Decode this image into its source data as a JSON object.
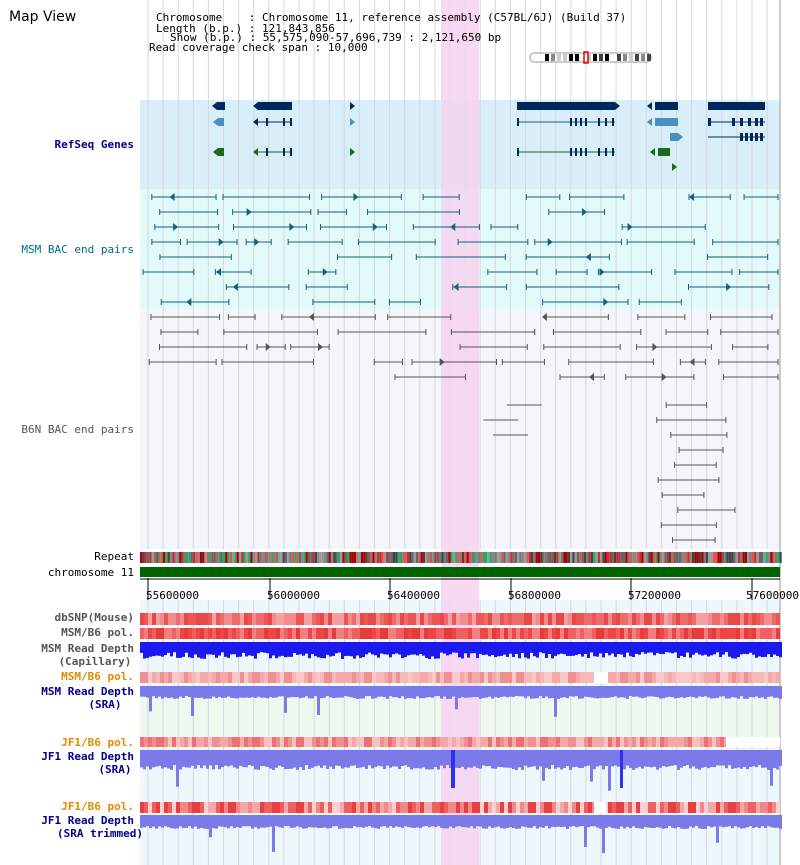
{
  "page": {
    "title": "Map View"
  },
  "info": {
    "chromosome_label": "Chromosome",
    "chromosome_value": "Chromosome 11, reference assembly (C57BL/6J) (Build 37)",
    "length_label": "Length (b.p.)",
    "length_value": "121,843,856",
    "show_label": "Show (b.p.)",
    "show_value": "55,575,090-57,696,739 : 2,121,650 bp",
    "coverage_label": "Read coverage check span",
    "coverage_value": "10,000",
    "separator": ":"
  },
  "tracks": {
    "refseq": "RefSeq Genes",
    "msm_bac": "MSM BAC end pairs",
    "b6n_bac": "B6N BAC end pairs",
    "repeat": "Repeat",
    "chromosome": "chromosome 11",
    "dbsnp": "dbSNP(Mouse)",
    "msm_b6_pol_1": "MSM/B6 pol.",
    "msm_read_depth_cap_1": "MSM Read Depth",
    "msm_read_depth_cap_2": "(Capillary)",
    "msm_b6_pol_2": "MSM/B6 pol.",
    "msm_read_depth_sra_1": "MSM Read Depth",
    "msm_read_depth_sra_2": "(SRA)",
    "jf1_b6_pol_1": "JF1/B6 pol.",
    "jf1_read_depth_sra_1": "JF1 Read Depth",
    "jf1_read_depth_sra_2": "(SRA)",
    "jf1_b6_pol_2": "JF1/B6 pol.",
    "jf1_read_depth_trim_1": "JF1 Read Depth",
    "jf1_read_depth_trim_2": "(SRA trimmed)"
  },
  "axis": {
    "ticks": [
      "55600000",
      "56000000",
      "56400000",
      "56800000",
      "57200000",
      "57600000"
    ]
  },
  "colors": {
    "refseq_bg": "#d8eef8",
    "msm_bg": "#e2fafa",
    "b6n_bg": "#f4f6fb",
    "highlight": "#f7d2f0",
    "chromosome_bar": "#006400",
    "gene_dark": "#00285a",
    "gene_light": "#4a8fc4",
    "gene_green": "#1a6b1a",
    "msm_line": "#16607a",
    "b6n_line": "#555555",
    "depth_capillary": "#1a1aee",
    "depth_sra": "#7a7ae8",
    "pol_red": "#ee5555"
  }
}
